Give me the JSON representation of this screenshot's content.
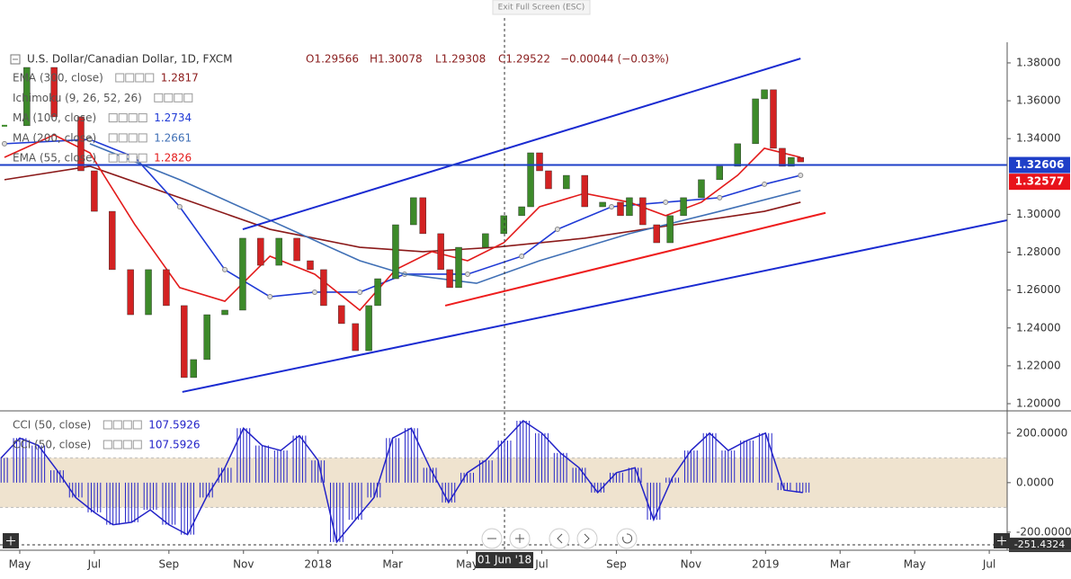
{
  "toolbar": {
    "exit_full_screen": "Exit Full Screen (ESC)"
  },
  "chart_data": [
    {
      "type": "candlestick",
      "title": "U.S. Dollar/Canadian Dollar, 1D, FXCM",
      "ohlc_labels": [
        "O1.29566",
        "H1.30078",
        "L1.29308",
        "C1.29522"
      ],
      "change_label": "−0.00044 (−0.03%)",
      "up_color": "#3d8a2a",
      "down_color": "#d32222",
      "x": [
        -0.41,
        0.19,
        0.92,
        1.64,
        2.0,
        2.48,
        2.97,
        3.45,
        3.93,
        4.41,
        4.66,
        5.02,
        5.5,
        5.98,
        6.46,
        6.95,
        7.43,
        7.79,
        8.15,
        8.63,
        9.0,
        9.36,
        9.6,
        10.08,
        10.56,
        10.81,
        11.29,
        11.53,
        11.77,
        12.49,
        12.98,
        13.46,
        13.7,
        13.94,
        14.18,
        14.66,
        15.15,
        15.63,
        16.11,
        16.35,
        16.71,
        17.08,
        17.44,
        17.8,
        18.28,
        18.77,
        19.25,
        19.73,
        19.97,
        20.21,
        20.45,
        20.69,
        20.94
      ],
      "values": [
        1.3468,
        1.3776,
        1.3515,
        1.323,
        1.3016,
        1.2708,
        1.247,
        1.2708,
        1.2518,
        1.2138,
        1.2233,
        1.247,
        1.2494,
        1.2874,
        1.2731,
        1.2874,
        1.2755,
        1.2708,
        1.2518,
        1.2423,
        1.228,
        1.2518,
        1.266,
        1.2945,
        1.3088,
        1.2898,
        1.2708,
        1.2613,
        1.2826,
        1.2898,
        1.2993,
        1.304,
        1.3325,
        1.323,
        1.3135,
        1.3206,
        1.304,
        1.3064,
        1.2993,
        1.3088,
        1.2945,
        1.285,
        1.2993,
        1.3088,
        1.3183,
        1.3254,
        1.3373,
        1.361,
        1.3658,
        1.3349,
        1.3254,
        1.3301,
        1.3277
      ],
      "xlim": [
        -0.53,
        26.48
      ],
      "ylim": [
        1.1962,
        1.3909
      ],
      "yticks": [
        {
          "value": 1.38,
          "label": "1.38000"
        },
        {
          "value": 1.36,
          "label": "1.36000"
        },
        {
          "value": 1.34,
          "label": "1.34000"
        },
        {
          "value": 1.3,
          "label": "1.30000"
        },
        {
          "value": 1.28,
          "label": "1.28000"
        },
        {
          "value": 1.26,
          "label": "1.26000"
        },
        {
          "value": 1.24,
          "label": "1.24000"
        },
        {
          "value": 1.22,
          "label": "1.22000"
        },
        {
          "value": 1.2,
          "label": "1.20000"
        }
      ],
      "xticks": [
        {
          "value": 0,
          "label": "May"
        },
        {
          "value": 2,
          "label": "Jul"
        },
        {
          "value": 4,
          "label": "Sep"
        },
        {
          "value": 6,
          "label": "Nov"
        },
        {
          "value": 8,
          "label": "2018"
        },
        {
          "value": 10,
          "label": "Mar"
        },
        {
          "value": 12,
          "label": "May"
        },
        {
          "value": 14,
          "label": "Jul"
        },
        {
          "value": 16,
          "label": "Sep"
        },
        {
          "value": 18,
          "label": "Nov"
        },
        {
          "value": 20,
          "label": "2019"
        },
        {
          "value": 22,
          "label": "Mar"
        },
        {
          "value": 24,
          "label": "May"
        },
        {
          "value": 26,
          "label": "Jul"
        }
      ],
      "series": [
        {
          "name": "EMA (300, close)",
          "value": 1.2817,
          "color": "#8b1a1a",
          "dots": false,
          "x": [
            -0.41,
            1.88,
            4.29,
            6.71,
            9.12,
            10.81,
            12.74,
            15.15,
            17.56,
            19.97,
            20.94
          ],
          "values": [
            1.3183,
            1.3254,
            1.3088,
            1.2921,
            1.2826,
            1.2803,
            1.2826,
            1.2874,
            1.2945,
            1.3016,
            1.3064
          ]
        },
        {
          "name": "MA (100, close)",
          "value": 1.2734,
          "color": "#1f3ad6",
          "dots": true,
          "x": [
            -0.41,
            1.88,
            3.09,
            4.29,
            5.5,
            6.71,
            7.91,
            9.12,
            10.32,
            12.01,
            13.46,
            14.42,
            15.87,
            17.32,
            18.77,
            19.97,
            20.94
          ],
          "values": [
            1.3373,
            1.3396,
            1.3301,
            1.304,
            1.2708,
            1.2565,
            1.2589,
            1.2589,
            1.2684,
            1.2684,
            1.2779,
            1.2921,
            1.304,
            1.3064,
            1.3088,
            1.3159,
            1.3206
          ]
        },
        {
          "name": "MA (200, close)",
          "value": 1.2661,
          "color": "#3f6fb5",
          "dots": false,
          "x": [
            1.88,
            4.29,
            6.71,
            9.12,
            10.32,
            12.25,
            13.94,
            16.35,
            18.77,
            20.94
          ],
          "values": [
            1.3373,
            1.3183,
            1.2969,
            1.2755,
            1.2684,
            1.2636,
            1.2755,
            1.2898,
            1.3016,
            1.3126
          ]
        },
        {
          "name": "EMA (55, close)",
          "value": 1.2826,
          "color": "#e31b1b",
          "dots": false,
          "x": [
            -0.41,
            0.92,
            1.88,
            3.09,
            4.29,
            5.5,
            6.71,
            7.91,
            9.12,
            10.08,
            11.05,
            12.01,
            12.98,
            13.94,
            15.15,
            16.35,
            17.32,
            18.28,
            19.25,
            19.97,
            20.94
          ],
          "values": [
            1.3301,
            1.342,
            1.3325,
            1.2945,
            1.2613,
            1.2541,
            1.2779,
            1.2684,
            1.2494,
            1.2708,
            1.2803,
            1.2755,
            1.285,
            1.304,
            1.3111,
            1.3064,
            1.2993,
            1.3064,
            1.3206,
            1.3349,
            1.3301
          ]
        }
      ],
      "extra_legend": "Ichimoku (9, 26, 52, 26)",
      "trendlines": [
        {
          "color": "#1a2bd1",
          "points": [
            [
              5.98,
              1.2921
            ],
            [
              20.94,
              1.3823
            ]
          ]
        },
        {
          "color": "#1a2bd1",
          "points": [
            [
              4.36,
              1.2062
            ],
            [
              26.48,
              1.2969
            ]
          ]
        },
        {
          "color": "#ee1c1c",
          "points": [
            [
              11.41,
              1.2518
            ],
            [
              21.61,
              1.3008
            ]
          ]
        }
      ],
      "price_labels": [
        {
          "value": 1.32606,
          "color": "#1e3fc8"
        },
        {
          "value": 1.32577,
          "color": "#e8131b"
        }
      ],
      "crosshair": {
        "x": 13,
        "label": "01 Jun '18"
      }
    },
    {
      "type": "bar",
      "legend": [
        {
          "name": "CCI (50, close)",
          "value": 107.5926
        },
        {
          "name": "CCI (50, close)",
          "value": 107.5926
        }
      ],
      "color": "#2323c8",
      "band": [
        -100,
        100
      ],
      "band_color": "#efe3cf",
      "x": [
        -0.5,
        0,
        0.5,
        1,
        1.5,
        2,
        2.5,
        3,
        3.5,
        4,
        4.5,
        5,
        5.5,
        6,
        6.5,
        7,
        7.5,
        8,
        8.5,
        9,
        9.5,
        10,
        10.5,
        11,
        11.5,
        12,
        12.5,
        13,
        13.5,
        14,
        14.5,
        15,
        15.5,
        16,
        16.5,
        17,
        17.5,
        18,
        18.5,
        19,
        19.5,
        20,
        20.5,
        21
      ],
      "values": [
        100,
        180,
        150,
        50,
        -60,
        -120,
        -170,
        -160,
        -110,
        -170,
        -210,
        -60,
        60,
        220,
        150,
        130,
        190,
        90,
        -240,
        -150,
        -60,
        180,
        220,
        60,
        -80,
        40,
        90,
        170,
        250,
        200,
        120,
        60,
        -40,
        40,
        60,
        -150,
        20,
        130,
        200,
        130,
        170,
        200,
        -30,
        -40
      ],
      "ylim": [
        -273,
        290
      ],
      "yticks": [
        {
          "value": 200,
          "label": "200.0000"
        },
        {
          "value": 0,
          "label": "0.0000"
        },
        {
          "value": -200,
          "label": "-200.0000"
        }
      ],
      "crosshair": {
        "value": -251.4324
      }
    }
  ]
}
